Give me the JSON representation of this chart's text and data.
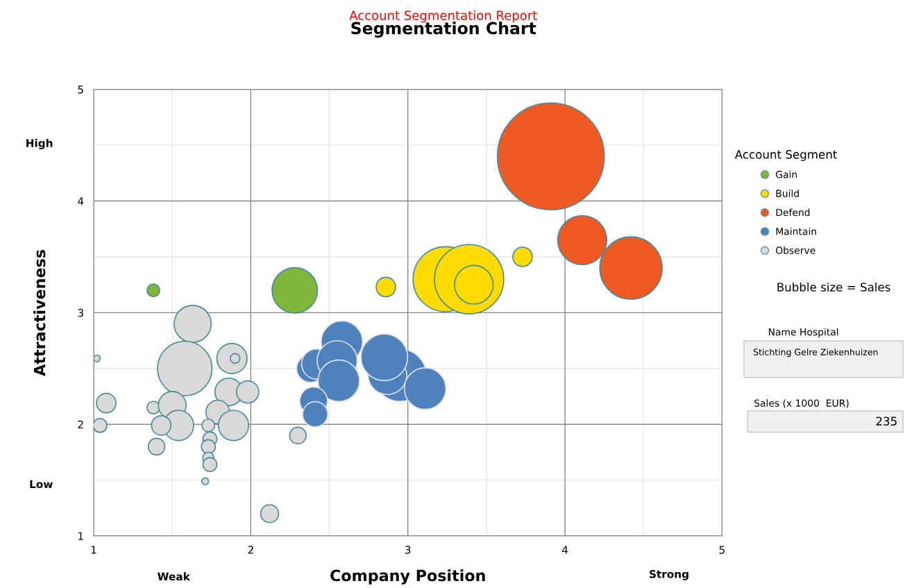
{
  "chart_data": {
    "type": "bubble",
    "title": "Segmentation Chart",
    "xlabel": "Company Position",
    "ylabel": "Attractiveness",
    "legend_title": "Account Segment",
    "annotations": [
      "Account Segmentation Report",
      "High",
      "Low",
      "Weak",
      "Strong",
      "Bubble size = Sales",
      "Name Hospital",
      "Stichting Gelre Ziekenhuizen",
      "Sales (x 1000  EUR)",
      "235"
    ],
    "xlim": [
      1,
      5
    ],
    "ylim": [
      1,
      5
    ],
    "xticks": [
      1,
      2,
      3,
      4,
      5
    ],
    "yticks": [
      1,
      2,
      3,
      4,
      5
    ],
    "grid": true,
    "legend": "right",
    "series": [
      {
        "name": "Gain",
        "color": "#7fb63b",
        "x": [
          1.38,
          2.28
        ],
        "values": [
          3.2,
          3.2
        ],
        "sizes": [
          0.014,
          0.18
        ]
      },
      {
        "name": "Build",
        "color": "#ffdc00",
        "x": [
          2.86,
          3.24,
          3.39,
          3.42,
          3.73
        ],
        "values": [
          3.23,
          3.3,
          3.3,
          3.25,
          3.5
        ],
        "sizes": [
          0.033,
          0.37,
          0.42,
          0.13,
          0.033
        ]
      },
      {
        "name": "Defend",
        "color": "#ef5a22",
        "x": [
          3.91,
          4.11,
          4.42
        ],
        "values": [
          4.4,
          3.65,
          3.4
        ],
        "sizes": [
          1,
          0.21,
          0.34
        ]
      },
      {
        "name": "Maintain",
        "color": "#4f81bd",
        "x": [
          2.58,
          2.38,
          2.42,
          2.55,
          2.56,
          2.4,
          2.41,
          2.95,
          2.87,
          2.85,
          3.11
        ],
        "values": [
          2.74,
          2.5,
          2.54,
          2.57,
          2.39,
          2.21,
          2.09,
          2.44,
          2.44,
          2.6,
          2.32
        ],
        "sizes": [
          0.15,
          0.067,
          0.08,
          0.14,
          0.15,
          0.067,
          0.055,
          0.24,
          0.13,
          0.19,
          0.15
        ]
      },
      {
        "name": "Observe",
        "color": "#d9d9d9",
        "x": [
          1.02,
          1.08,
          1.04,
          1.63,
          1.58,
          1.88,
          1.9,
          1.86,
          1.98,
          1.38,
          1.5,
          1.54,
          1.43,
          1.79,
          1.89,
          1.73,
          1.4,
          1.74,
          1.73,
          1.73,
          1.74,
          1.71,
          2.12,
          2.3
        ],
        "values": [
          2.59,
          2.19,
          1.99,
          2.9,
          2.5,
          2.59,
          2.59,
          2.29,
          2.29,
          2.15,
          2.17,
          1.99,
          1.99,
          2.11,
          1.99,
          1.99,
          1.8,
          1.87,
          1.8,
          1.7,
          1.64,
          1.49,
          1.2,
          1.9
        ],
        "sizes": [
          0.004,
          0.033,
          0.017,
          0.12,
          0.26,
          0.08,
          0.008,
          0.067,
          0.043,
          0.014,
          0.067,
          0.08,
          0.033,
          0.049,
          0.08,
          0.014,
          0.024,
          0.017,
          0.017,
          0.011,
          0.017,
          0.004,
          0.028,
          0.024
        ]
      }
    ]
  }
}
